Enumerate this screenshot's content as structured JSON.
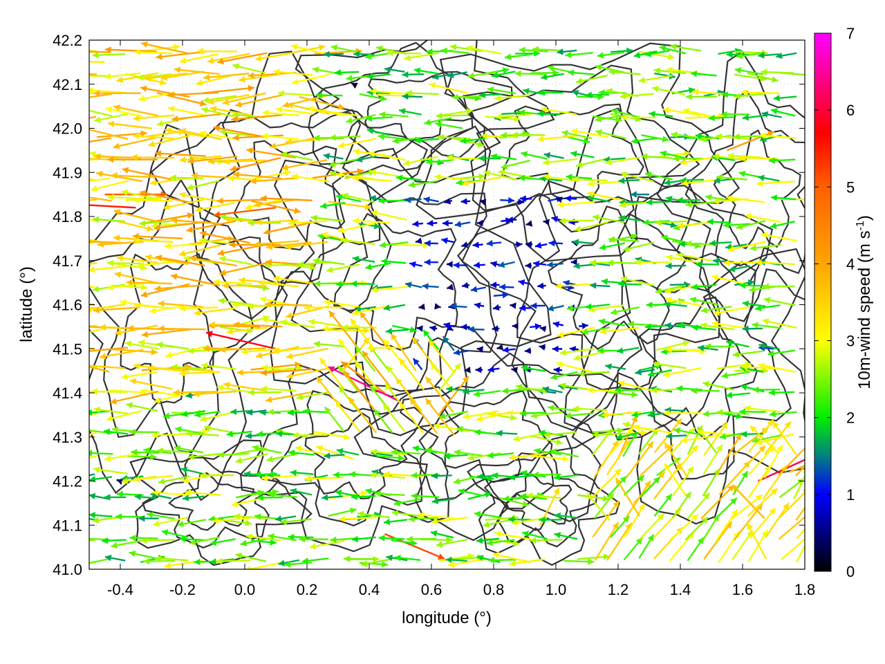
{
  "chart_data": {
    "type": "vector-field",
    "xlabel": "longitude (°)",
    "ylabel": "latitude (°)",
    "colorbar_label": "10m-wind speed (m s⁻¹)",
    "colorbar_label_main": "10m-wind speed (m s",
    "colorbar_label_sup": "-1",
    "colorbar_label_end": ")",
    "xlim": [
      -0.5,
      1.8
    ],
    "ylim": [
      41.0,
      42.2
    ],
    "xticks": [
      "-0.4",
      "-0.2",
      "0.0",
      "0.2",
      "0.4",
      "0.6",
      "0.8",
      "1.0",
      "1.2",
      "1.4",
      "1.6",
      "1.8"
    ],
    "xtick_values": [
      -0.4,
      -0.2,
      0.0,
      0.2,
      0.4,
      0.6,
      0.8,
      1.0,
      1.2,
      1.4,
      1.6,
      1.8
    ],
    "yticks": [
      "41.0",
      "41.1",
      "41.2",
      "41.3",
      "41.4",
      "41.5",
      "41.6",
      "41.7",
      "41.8",
      "41.9",
      "42.0",
      "42.1",
      "42.2"
    ],
    "ytick_values": [
      41.0,
      41.1,
      41.2,
      41.3,
      41.4,
      41.5,
      41.6,
      41.7,
      41.8,
      41.9,
      42.0,
      42.1,
      42.2
    ],
    "colorbar_range": [
      0,
      7
    ],
    "colorbar_ticks": [
      "0",
      "1",
      "2",
      "3",
      "4",
      "5",
      "6",
      "7"
    ],
    "colorbar_tick_values": [
      0,
      1,
      2,
      3,
      4,
      5,
      6,
      7
    ],
    "colormap": [
      {
        "value": 0,
        "color": "#000000"
      },
      {
        "value": 1,
        "color": "#0000ff"
      },
      {
        "value": 1.5,
        "color": "#008080"
      },
      {
        "value": 2,
        "color": "#00ee00"
      },
      {
        "value": 3,
        "color": "#ffff00"
      },
      {
        "value": 4,
        "color": "#ffa500"
      },
      {
        "value": 5,
        "color": "#ff6000"
      },
      {
        "value": 5.7,
        "color": "#ff0000"
      },
      {
        "value": 7,
        "color": "#ff00ff"
      }
    ],
    "grid": true,
    "contour_color": "#333333",
    "wind_vectors": [
      {
        "lon": -0.45,
        "lat": 42.15,
        "u": -3.2,
        "v": 0.1
      },
      {
        "lon": -0.3,
        "lat": 42.0,
        "u": -3.5,
        "v": 0.4
      },
      {
        "lon": -0.45,
        "lat": 41.85,
        "u": 5.0,
        "v": 0.0
      },
      {
        "lon": -0.35,
        "lat": 41.82,
        "u": -5.5,
        "v": 0.3
      },
      {
        "lon": -0.2,
        "lat": 41.75,
        "u": -4.0,
        "v": 0.2
      },
      {
        "lon": 0.1,
        "lat": 41.82,
        "u": -5.0,
        "v": -0.6
      },
      {
        "lon": 0.05,
        "lat": 41.55,
        "u": -4.2,
        "v": 0.1
      },
      {
        "lon": 0.1,
        "lat": 41.5,
        "u": -5.6,
        "v": 1.3
      },
      {
        "lon": -0.1,
        "lat": 41.45,
        "u": -3.5,
        "v": 0.2
      },
      {
        "lon": 0.45,
        "lat": 41.4,
        "u": -3.5,
        "v": 2.5
      },
      {
        "lon": 0.5,
        "lat": 41.38,
        "u": -5.8,
        "v": 2.8
      },
      {
        "lon": 0.55,
        "lat": 41.45,
        "u": -2.0,
        "v": 3.0
      },
      {
        "lon": 0.35,
        "lat": 41.25,
        "u": -3.0,
        "v": 1.0
      },
      {
        "lon": 0.45,
        "lat": 41.08,
        "u": 4.8,
        "v": -2.0
      },
      {
        "lon": 1.65,
        "lat": 41.2,
        "u": 5.5,
        "v": 2.5
      },
      {
        "lon": 1.75,
        "lat": 41.22,
        "u": 3.5,
        "v": 1.5
      },
      {
        "lon": 1.55,
        "lat": 41.95,
        "u": 3.8,
        "v": 1.5
      },
      {
        "lon": 1.2,
        "lat": 41.25,
        "u": 1.5,
        "v": 3.5
      },
      {
        "lon": 1.25,
        "lat": 41.15,
        "u": 2.5,
        "v": 2.5
      },
      {
        "lon": 0.95,
        "lat": 41.1,
        "u": 1.5,
        "v": 3.0
      },
      {
        "lon": 0.65,
        "lat": 41.55,
        "u": 0.5,
        "v": -0.3
      },
      {
        "lon": 0.8,
        "lat": 41.62,
        "u": 1.2,
        "v": 0.1
      },
      {
        "lon": 1.0,
        "lat": 41.4,
        "u": -1.5,
        "v": 0.2
      },
      {
        "lon": -0.4,
        "lat": 41.2,
        "u": -0.3,
        "v": 0.1
      },
      {
        "lon": 0.2,
        "lat": 41.3,
        "u": -2.5,
        "v": 0.5
      },
      {
        "lon": 1.5,
        "lat": 41.7,
        "u": -2.8,
        "v": 0.5
      },
      {
        "lon": 1.7,
        "lat": 41.5,
        "u": -1.2,
        "v": 0.1
      },
      {
        "lon": 0.35,
        "lat": 42.1,
        "u": -0.2,
        "v": 0.1
      },
      {
        "lon": 0.7,
        "lat": 42.0,
        "u": -2.2,
        "v": 0.4
      },
      {
        "lon": 1.3,
        "lat": 41.85,
        "u": -1.5,
        "v": 0.0
      }
    ]
  }
}
